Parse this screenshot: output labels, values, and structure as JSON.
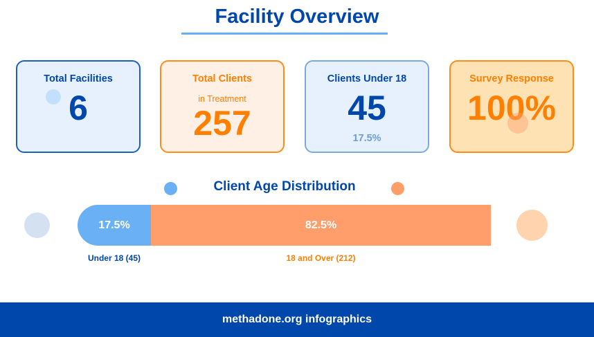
{
  "header": {
    "title": "Facility Overview"
  },
  "cards": [
    {
      "label": "Total Facilities",
      "value": "6"
    },
    {
      "label": "Total Clients",
      "sublabel": "in Treatment",
      "value": "257"
    },
    {
      "label": "Clients Under 18",
      "value": "45",
      "sub": "17.5%"
    },
    {
      "label": "Survey Response",
      "value": "100%"
    }
  ],
  "distribution": {
    "title": "Client Age Distribution",
    "segments": [
      {
        "label": "Under 18 (45)",
        "percent_text": "17.5%",
        "percent": 17.5,
        "color": "#6ab0f5"
      },
      {
        "label": "18 and Over (212)",
        "percent_text": "82.5%",
        "percent": 82.5,
        "color": "#ff9e6b"
      }
    ]
  },
  "footer": {
    "text": "methadone.org infographics"
  },
  "colors": {
    "primary": "#0047ab",
    "accent": "#ff7f00"
  }
}
